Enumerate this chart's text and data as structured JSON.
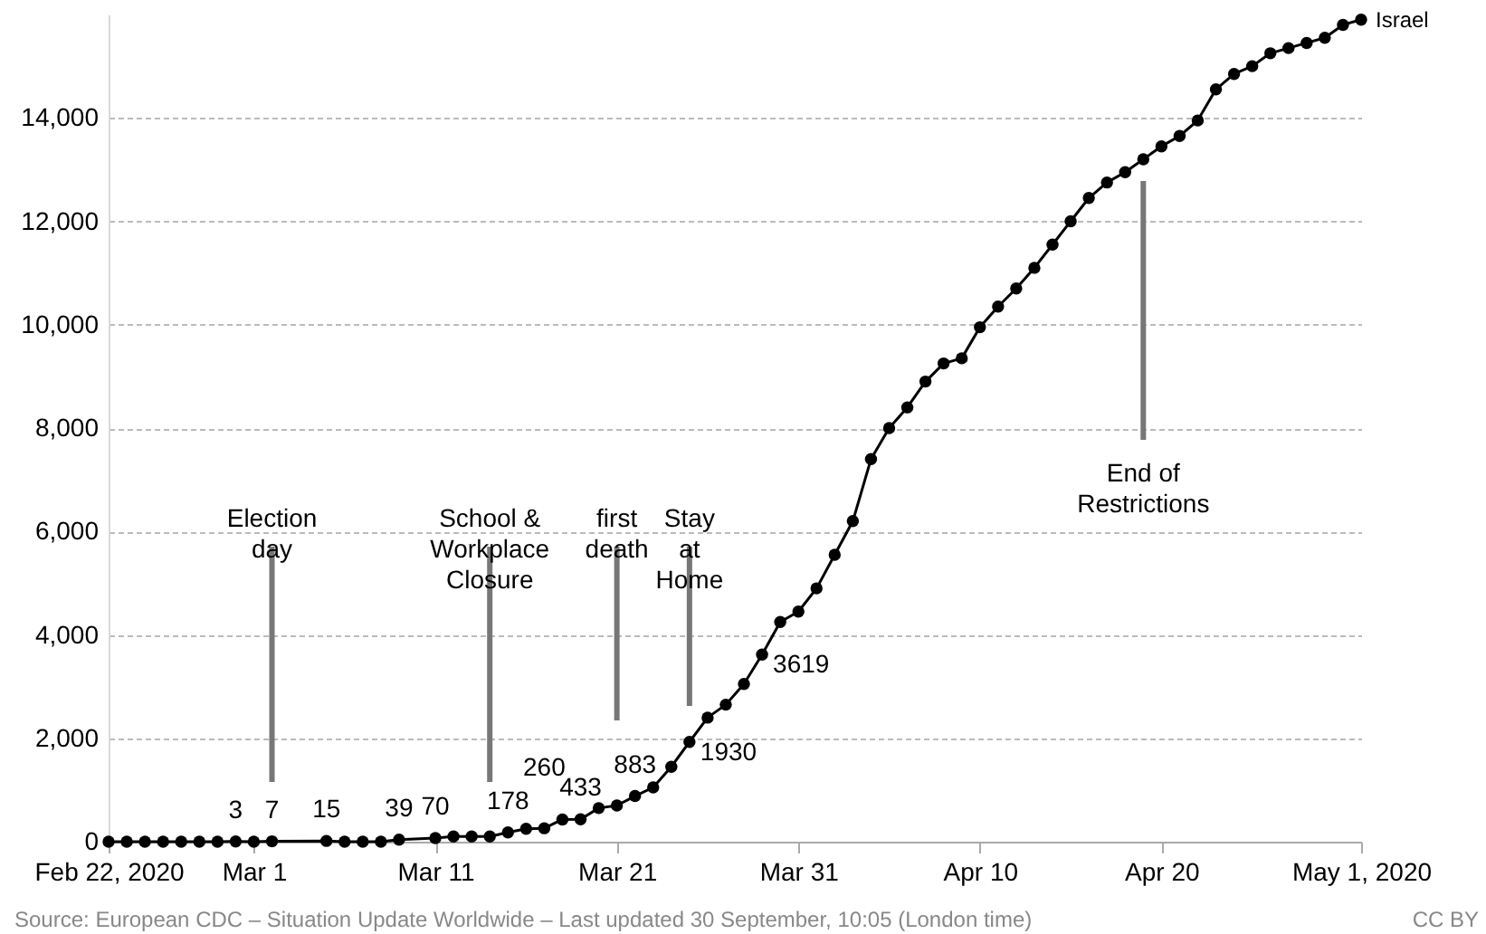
{
  "chart_data": {
    "type": "line",
    "x": [
      "2020-02-22",
      "2020-02-23",
      "2020-02-24",
      "2020-02-25",
      "2020-02-26",
      "2020-02-27",
      "2020-02-28",
      "2020-02-29",
      "2020-03-01",
      "2020-03-02",
      "2020-03-05",
      "2020-03-06",
      "2020-03-07",
      "2020-03-08",
      "2020-03-09",
      "2020-03-11",
      "2020-03-12",
      "2020-03-13",
      "2020-03-14",
      "2020-03-15",
      "2020-03-16",
      "2020-03-17",
      "2020-03-18",
      "2020-03-19",
      "2020-03-20",
      "2020-03-21",
      "2020-03-22",
      "2020-03-23",
      "2020-03-24",
      "2020-03-25",
      "2020-03-26",
      "2020-03-27",
      "2020-03-28",
      "2020-03-29",
      "2020-03-30",
      "2020-03-31",
      "2020-04-01",
      "2020-04-02",
      "2020-04-03",
      "2020-04-04",
      "2020-04-05",
      "2020-04-06",
      "2020-04-07",
      "2020-04-08",
      "2020-04-09",
      "2020-04-10",
      "2020-04-11",
      "2020-04-12",
      "2020-04-13",
      "2020-04-14",
      "2020-04-15",
      "2020-04-16",
      "2020-04-17",
      "2020-04-18",
      "2020-04-19",
      "2020-04-20",
      "2020-04-21",
      "2020-04-22",
      "2020-04-23",
      "2020-04-24",
      "2020-04-25",
      "2020-04-26",
      "2020-04-27",
      "2020-04-28",
      "2020-04-29",
      "2020-04-30",
      "2020-05-01"
    ],
    "series": [
      {
        "name": "Israel",
        "color": "#000000",
        "values": [
          0,
          0,
          0,
          0,
          0,
          0,
          0,
          3,
          0,
          7,
          15,
          0,
          0,
          0,
          39,
          70,
          100,
          100,
          100,
          178,
          250,
          260,
          430,
          433,
          650,
          700,
          883,
          1050,
          1450,
          1930,
          2400,
          2650,
          3050,
          3619,
          4250,
          4450,
          4900,
          5550,
          6200,
          7400,
          8000,
          8400,
          8900,
          9250,
          9350,
          9950,
          10350,
          10700,
          11100,
          11550,
          12000,
          12450,
          12750,
          12950,
          13200,
          13450,
          13650,
          13950,
          14550,
          14850,
          15000,
          15250,
          15350,
          15450,
          15550,
          15800,
          15900
        ],
        "value_labels": [
          null,
          null,
          null,
          null,
          null,
          null,
          null,
          "3",
          null,
          "7",
          "15",
          null,
          null,
          null,
          "39",
          "70",
          null,
          null,
          null,
          "178",
          null,
          "260",
          null,
          "433",
          null,
          null,
          "883",
          null,
          null,
          "1930",
          null,
          null,
          null,
          "3619",
          null,
          null,
          null,
          null,
          null,
          null,
          null,
          null,
          null,
          null,
          null,
          null,
          null,
          null,
          null,
          null,
          null,
          null,
          null,
          null,
          null,
          null,
          null,
          null,
          null,
          null,
          null,
          null,
          null,
          null,
          null,
          null,
          null
        ]
      }
    ],
    "xlim": [
      "2020-02-22",
      "2020-05-01"
    ],
    "xticks": [
      {
        "value": "2020-02-22",
        "label": "Feb 22, 2020"
      },
      {
        "value": "2020-03-01",
        "label": "Mar 1"
      },
      {
        "value": "2020-03-11",
        "label": "Mar 11"
      },
      {
        "value": "2020-03-21",
        "label": "Mar 21"
      },
      {
        "value": "2020-03-31",
        "label": "Mar 31"
      },
      {
        "value": "2020-04-10",
        "label": "Apr 10"
      },
      {
        "value": "2020-04-20",
        "label": "Apr 20"
      },
      {
        "value": "2020-05-01",
        "label": "May 1, 2020"
      }
    ],
    "ylim": [
      0,
      16000
    ],
    "yticks": [
      {
        "value": 0,
        "label": "0"
      },
      {
        "value": 2000,
        "label": "2,000"
      },
      {
        "value": 4000,
        "label": "4,000"
      },
      {
        "value": 6000,
        "label": "6,000"
      },
      {
        "value": 8000,
        "label": "8,000"
      },
      {
        "value": 10000,
        "label": "10,000"
      },
      {
        "value": 12000,
        "label": "12,000"
      },
      {
        "value": 14000,
        "label": "14,000"
      }
    ],
    "grid": "y",
    "legend": false,
    "marker": "circle",
    "line_style": "solid",
    "ref_lines": [
      {
        "axis": "x",
        "value": "2020-03-02",
        "label": "Election\nday",
        "color": "#777777"
      },
      {
        "axis": "x",
        "value": "2020-03-14",
        "label": "School &\nWorkplace\nClosure",
        "color": "#777777"
      },
      {
        "axis": "x",
        "value": "2020-03-21",
        "label": "first\ndeath",
        "color": "#777777"
      },
      {
        "axis": "x",
        "value": "2020-03-25",
        "label": "Stay\nat\nHome",
        "color": "#777777"
      },
      {
        "axis": "x",
        "value": "2020-04-19",
        "label": "End of\nRestrictions",
        "color": "#777777"
      }
    ],
    "annotations": [
      "Source: European CDC – Situation Update Worldwide – Last updated 30 September, 10:05 (London time)",
      "CC BY"
    ]
  }
}
